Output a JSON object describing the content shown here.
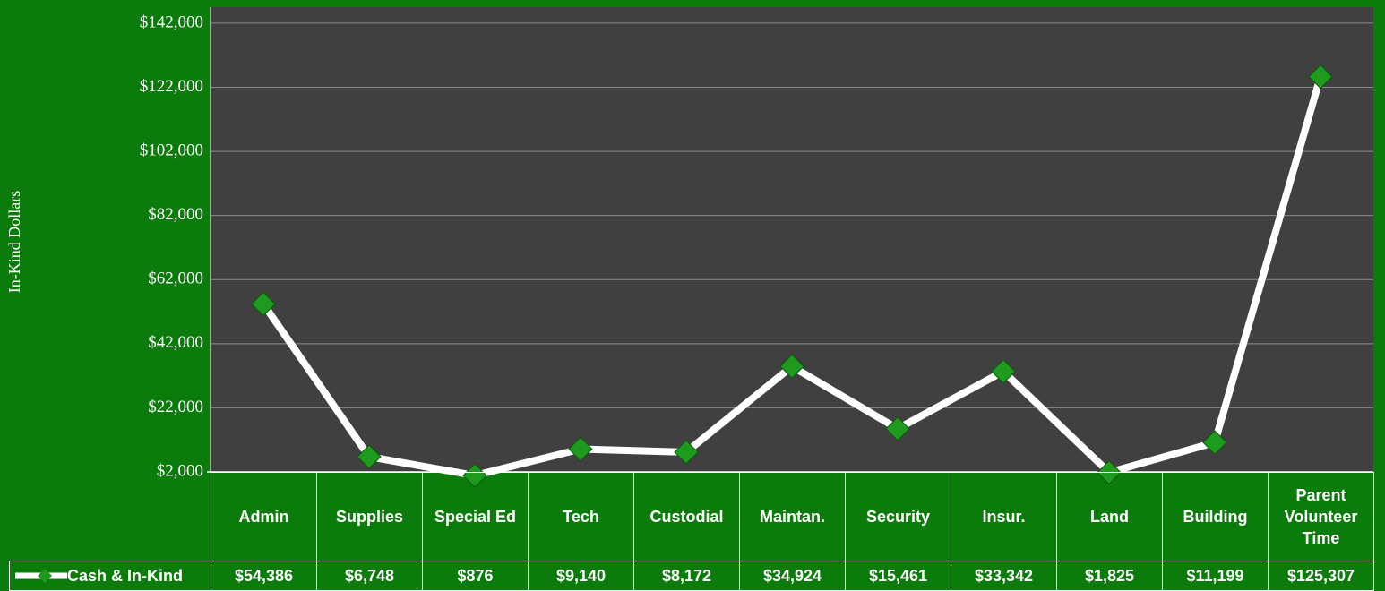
{
  "chart_data": {
    "type": "line",
    "y_label": "In-Kind Dollars",
    "categories": [
      "Admin",
      "Supplies",
      "Special Ed",
      "Tech",
      "Custodial",
      "Maintan.",
      "Security",
      "Insur.",
      "Land",
      "Building",
      "Parent Volunteer Time"
    ],
    "series": [
      {
        "name": "Cash & In-Kind",
        "color": "#ffffff",
        "marker_color": "#1e9a1e",
        "values": [
          54386,
          6748,
          876,
          9140,
          8172,
          34924,
          15461,
          33342,
          1825,
          11199,
          125307
        ],
        "value_labels": [
          "$54,386",
          "$6,748",
          "$876",
          "$9,140",
          "$8,172",
          "$34,924",
          "$15,461",
          "$33,342",
          "$1,825",
          "$11,199",
          "$125,307"
        ]
      }
    ],
    "ylim": [
      2000,
      147000
    ],
    "yticks": [
      {
        "value": 2000,
        "label": "$2,000"
      },
      {
        "value": 22000,
        "label": "$22,000"
      },
      {
        "value": 42000,
        "label": "$42,000"
      },
      {
        "value": 62000,
        "label": "$62,000"
      },
      {
        "value": 82000,
        "label": "$82,000"
      },
      {
        "value": 102000,
        "label": "$102,000"
      },
      {
        "value": 122000,
        "label": "$122,000"
      },
      {
        "value": 142000,
        "label": "$142,000"
      }
    ],
    "grid": true
  }
}
